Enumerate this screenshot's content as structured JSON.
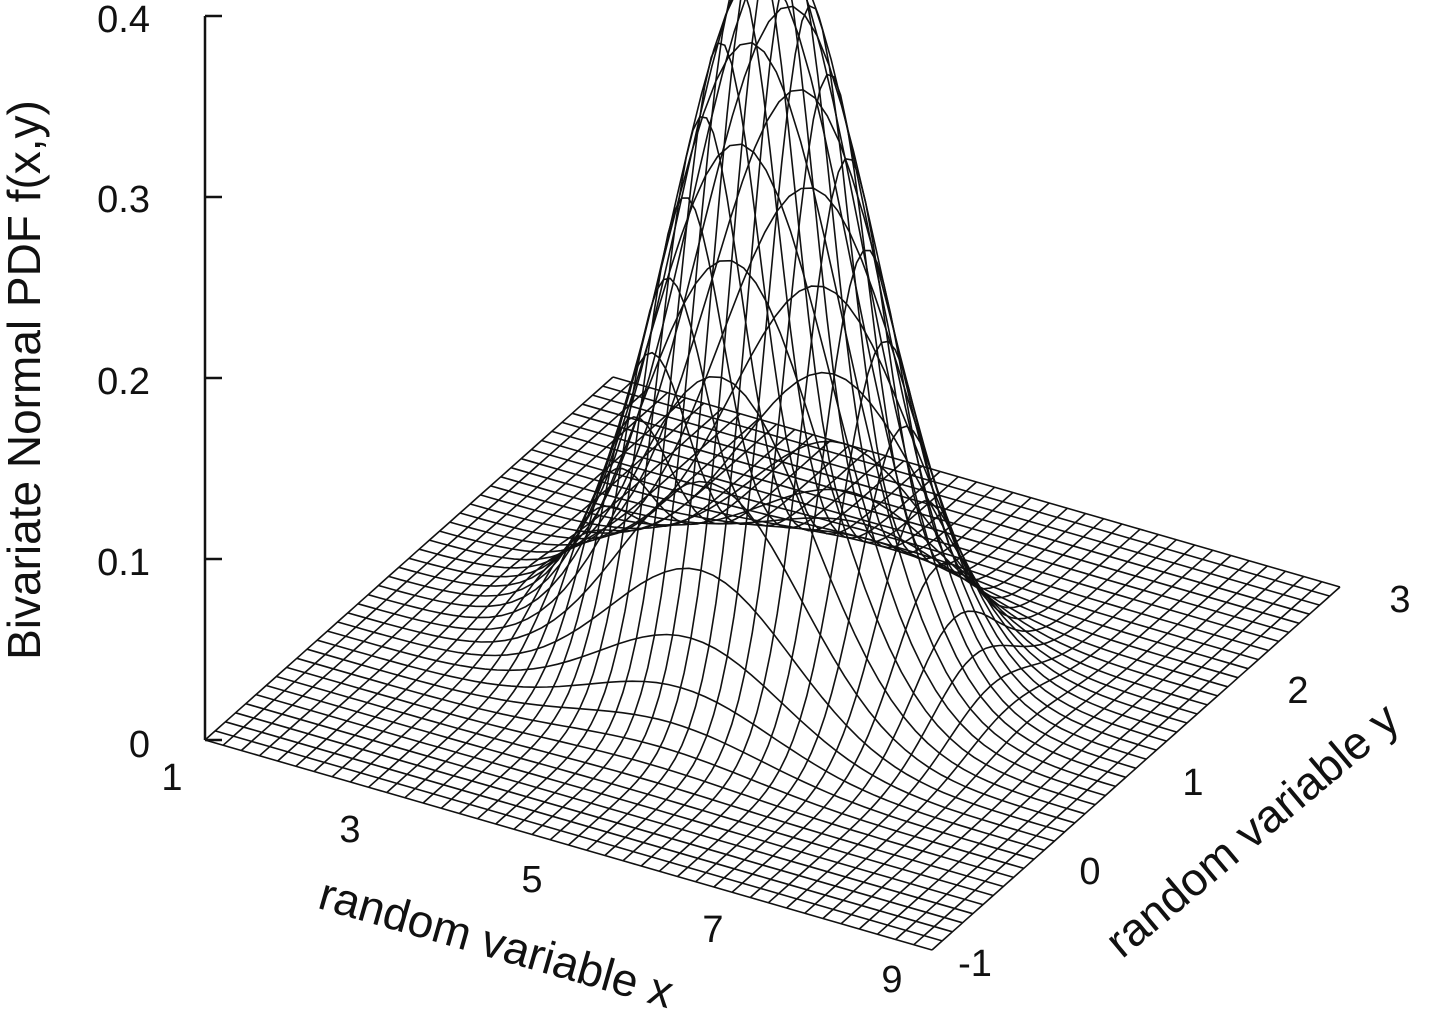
{
  "chart_data": {
    "type": "surface",
    "title": "",
    "zlabel": "Bivariate Normal PDF f(x,y)",
    "xlabel": "random variable x",
    "ylabel": "random variable y",
    "xlim": [
      1,
      9
    ],
    "ylim": [
      -1,
      3
    ],
    "zlim": [
      0,
      0.4
    ],
    "z_ticks": [
      "0",
      "0.1",
      "0.2",
      "0.3",
      "0.4"
    ],
    "x_ticks": [
      "1",
      "3",
      "5",
      "7",
      "9"
    ],
    "y_ticks": [
      "-1",
      "0",
      "1",
      "2",
      "3"
    ],
    "grid_resolution": [
      40,
      40
    ],
    "surface": {
      "function": "bivariate normal density",
      "mu_x": 5,
      "mu_y": 1,
      "sigma_x": 1,
      "sigma_y": 0.4,
      "peak": 0.4
    },
    "style": {
      "line_color": "#111111",
      "background": "#ffffff"
    }
  }
}
